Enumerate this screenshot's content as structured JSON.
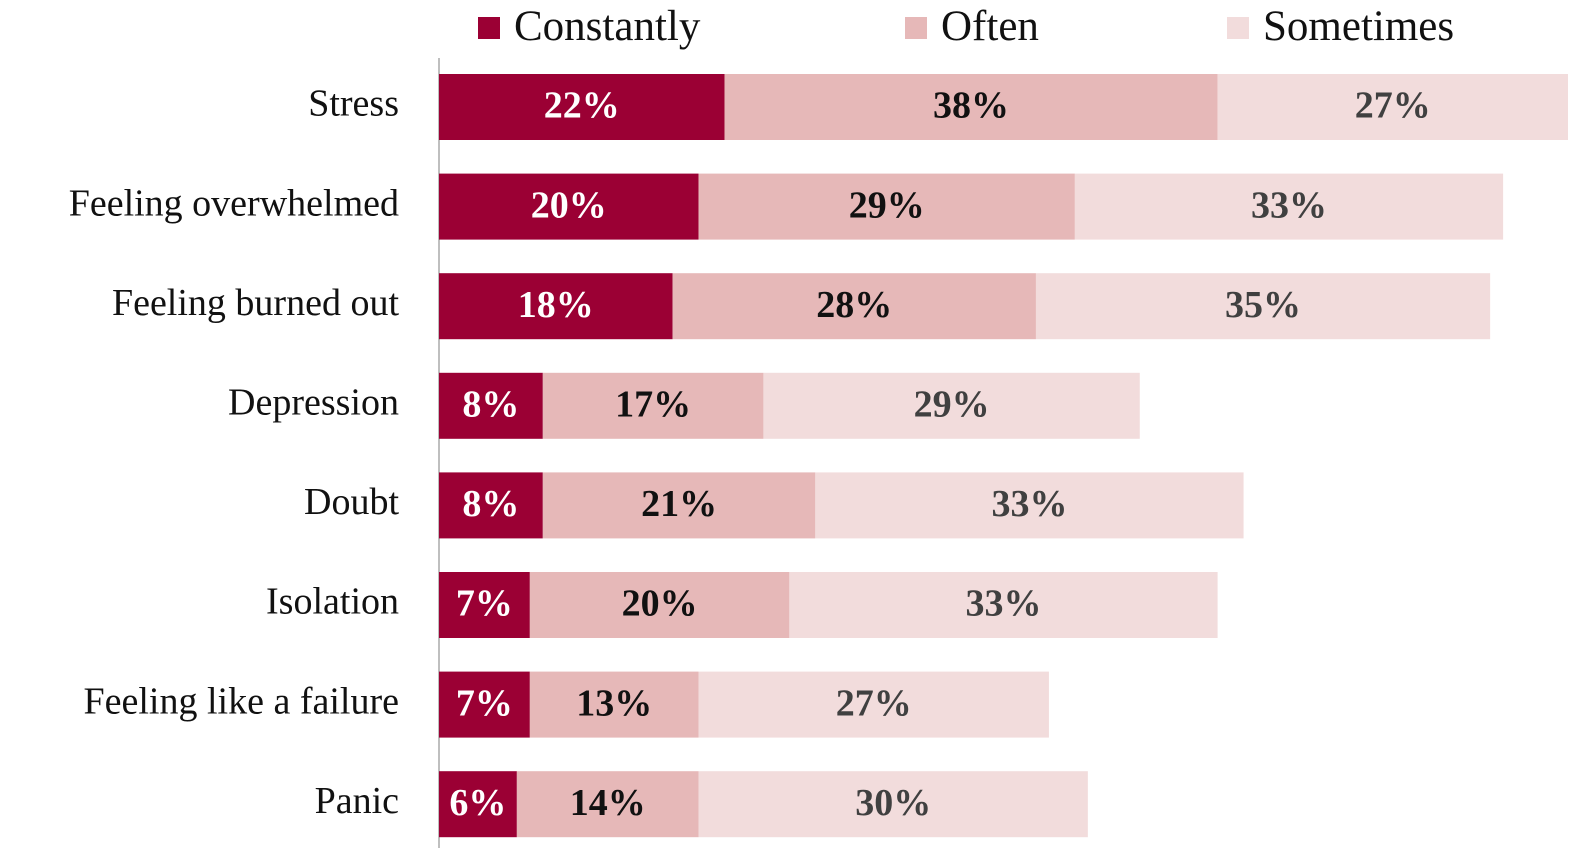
{
  "chart_data": {
    "type": "stacked_barh",
    "categories": [
      "Stress",
      "Feeling overwhelmed",
      "Feeling burned out",
      "Depression",
      "Doubt",
      "Isolation",
      "Feeling like a failure",
      "Panic"
    ],
    "series": [
      {
        "name": "Constantly",
        "color": "#9b0034",
        "label_color": "#ffffff",
        "values": [
          22,
          20,
          18,
          8,
          8,
          7,
          7,
          6
        ],
        "value_labels": [
          "22%",
          "20%",
          "18%",
          "8%",
          "8%",
          "7%",
          "7%",
          "6%"
        ]
      },
      {
        "name": "Often",
        "color": "#e6b8b8",
        "label_color": "#111111",
        "values": [
          38,
          29,
          28,
          17,
          21,
          20,
          13,
          14
        ],
        "value_labels": [
          "38%",
          "29%",
          "28%",
          "17%",
          "21%",
          "20%",
          "13%",
          "14%"
        ]
      },
      {
        "name": "Sometimes",
        "color": "#f2dcdc",
        "label_color": "#404040",
        "values": [
          27,
          33,
          35,
          29,
          33,
          33,
          27,
          30
        ],
        "value_labels": [
          "27%",
          "33%",
          "35%",
          "29%",
          "33%",
          "33%",
          "27%",
          "30%"
        ]
      }
    ],
    "legend": "top"
  }
}
